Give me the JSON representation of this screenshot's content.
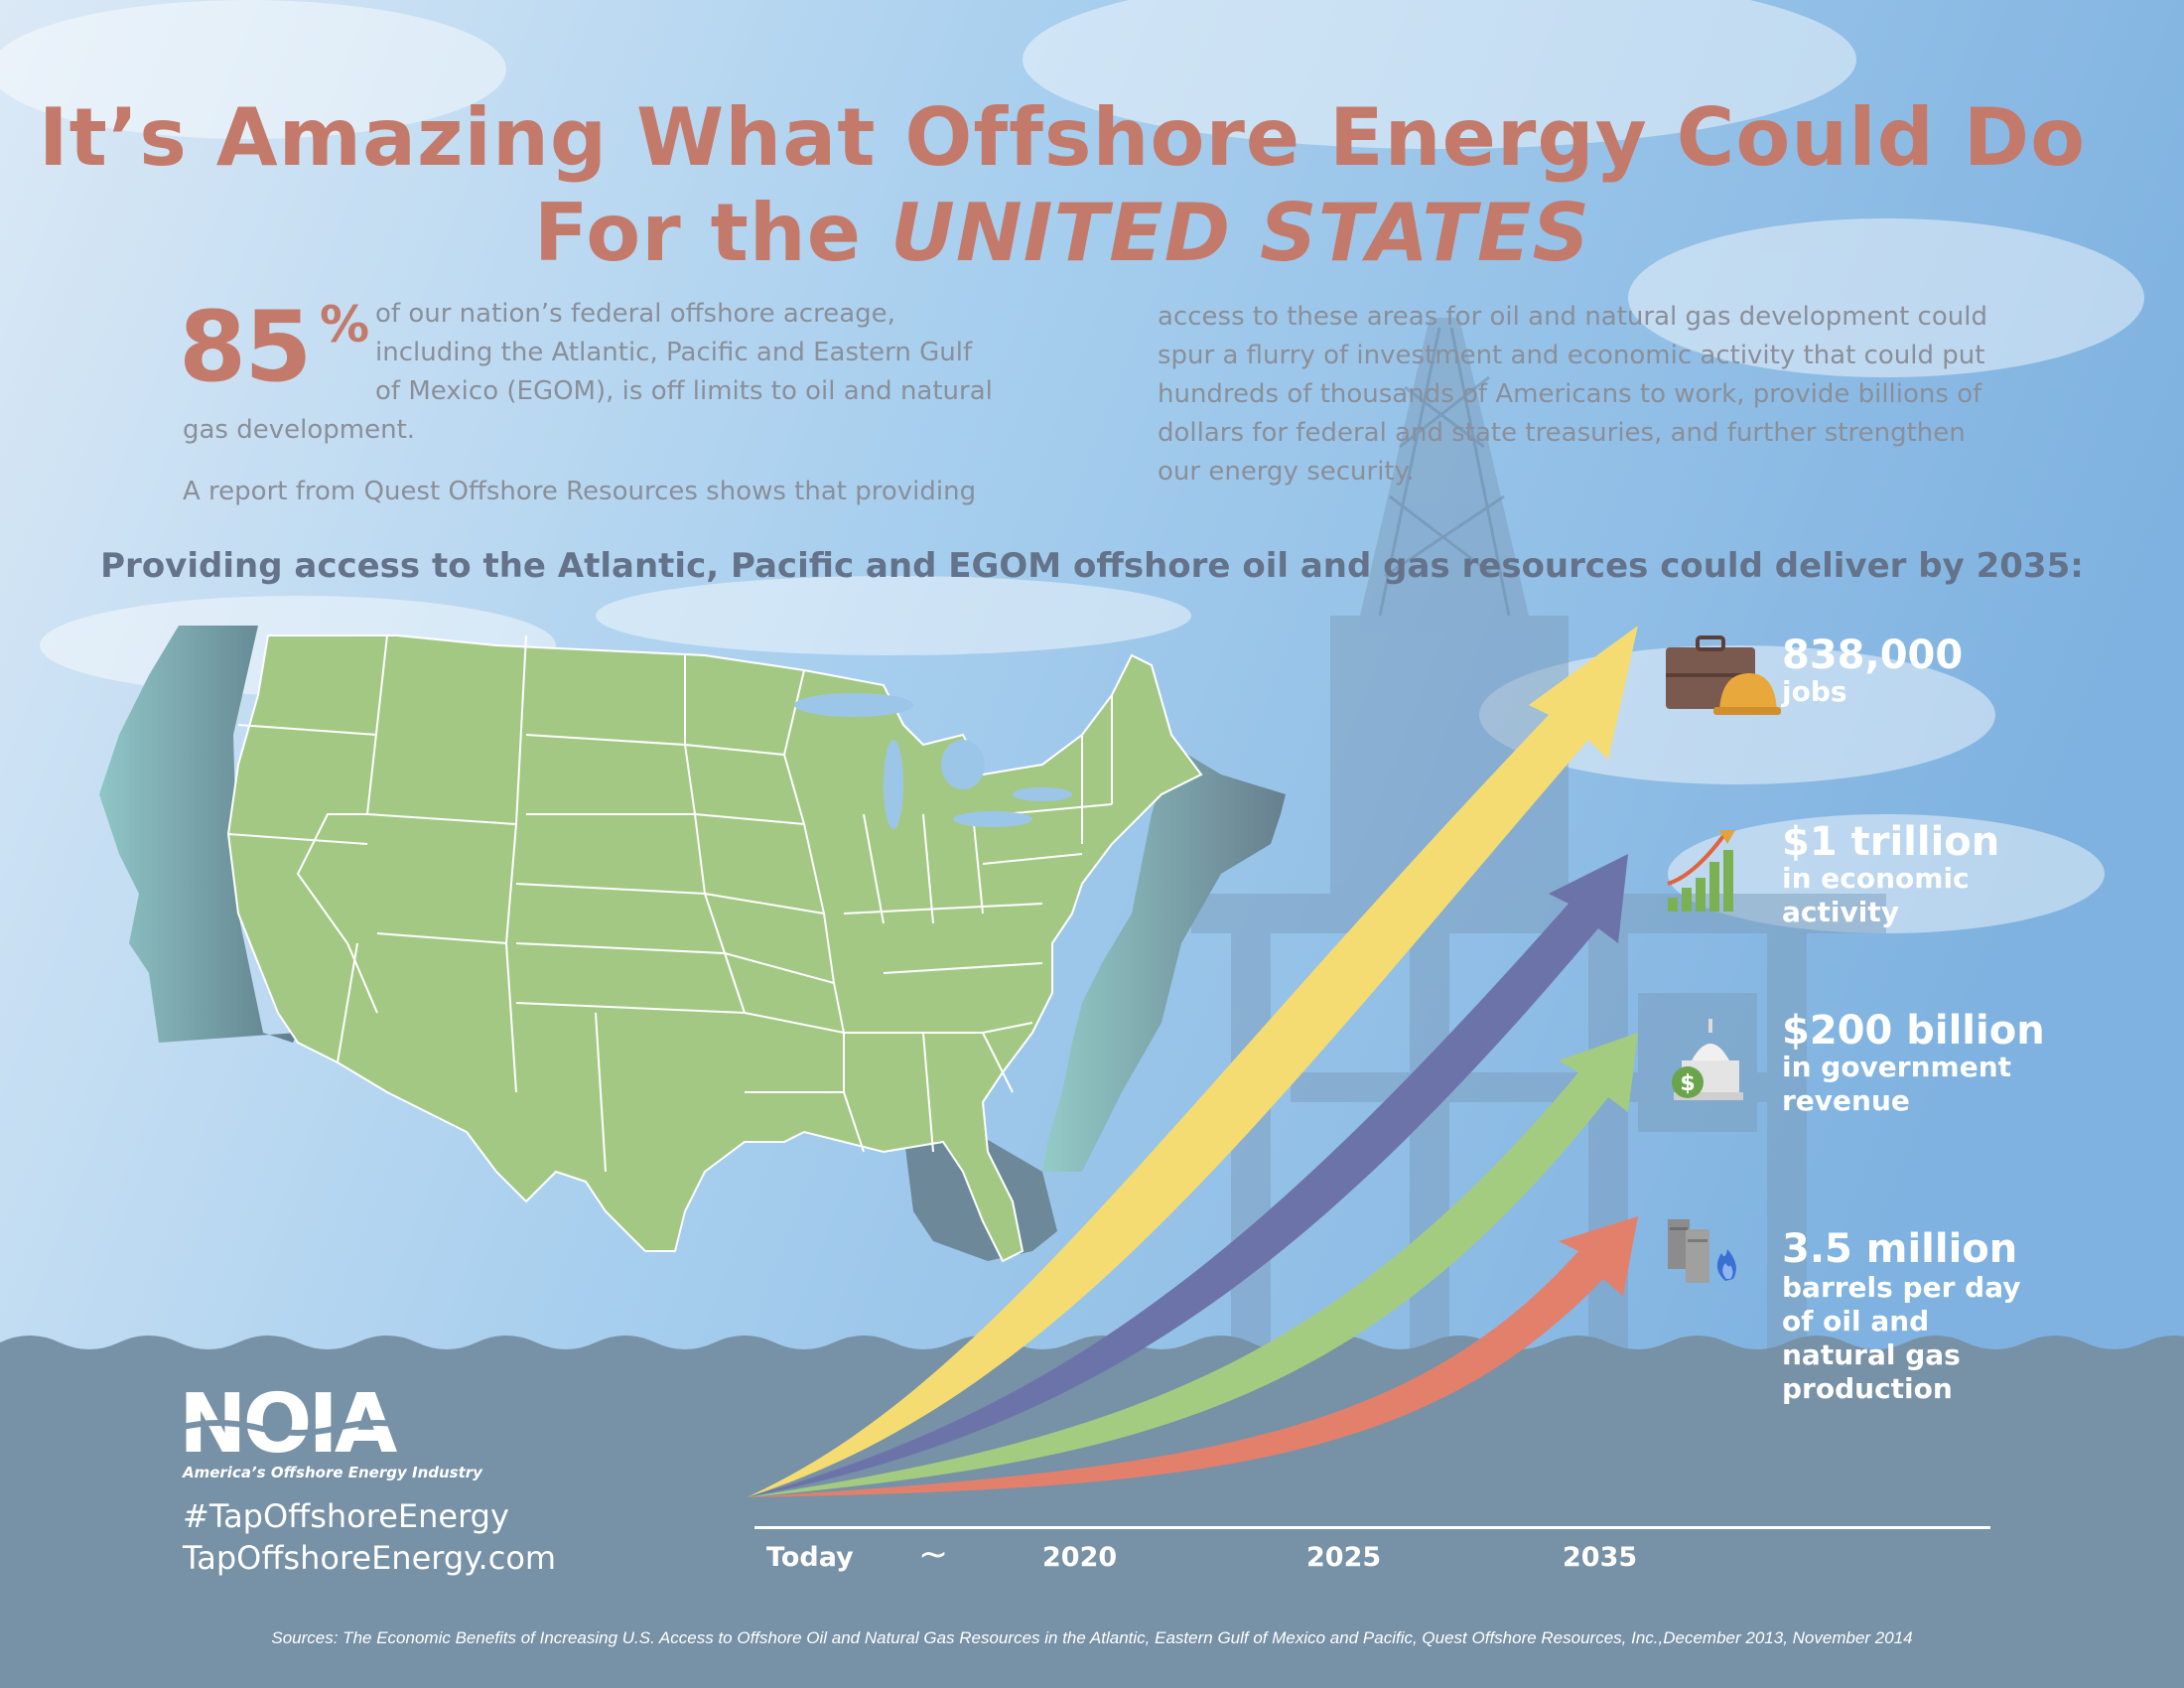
{
  "title": {
    "line1": "It’s Amazing What Offshore Energy Could Do",
    "line2_prefix": "For the ",
    "line2_emph": "UNITED STATES"
  },
  "intro": {
    "percent": "85",
    "percent_sign": "%",
    "p1_line1": "of our nation’s federal offshore acreage,",
    "p1_line2": "including the Atlantic, Pacific and Eastern Gulf",
    "p1_line3": "of Mexico (EGOM), is off limits to oil and natural",
    "p1_line4": "gas development.",
    "p2_line1": "A report from Quest Offshore Resources shows that providing",
    "right_line1": "access to these areas for oil and natural gas development could",
    "right_line2": "spur a flurry of investment and economic activity that could put",
    "right_line3": "hundreds of thousands of Americans to work, provide billions of",
    "right_line4": "dollars for federal and state treasuries, and further strengthen",
    "right_line5": "our energy security."
  },
  "subheading": "Providing access to the Atlantic, Pacific and EGOM offshore oil and gas resources could deliver by 2035:",
  "stats": [
    {
      "big": "838,000",
      "sub1": "jobs",
      "sub2": "",
      "sub3": "",
      "sub4": "",
      "icon": "briefcase-hardhat-icon",
      "arrow_color": "#f4dc72"
    },
    {
      "big": "$1 trillion",
      "sub1": "in economic",
      "sub2": "activity",
      "sub3": "",
      "sub4": "",
      "icon": "growth-chart-icon",
      "arrow_color": "#6c73a9"
    },
    {
      "big": "$200 billion",
      "sub1": "in government",
      "sub2": "revenue",
      "sub3": "",
      "sub4": "",
      "icon": "capitol-money-icon",
      "arrow_color": "#a4cc80"
    },
    {
      "big": "3.5 million",
      "sub1": "barrels per day",
      "sub2": "of oil and",
      "sub3": "natural gas",
      "sub4": "production",
      "icon": "barrels-flame-icon",
      "arrow_color": "#e3806c"
    }
  ],
  "timeline": {
    "labels": [
      "Today",
      "~",
      "2020",
      "2025",
      "2035"
    ]
  },
  "logo": {
    "text": "NOIA",
    "tagline": "America’s Offshore Energy Industry"
  },
  "hashtag": "#TapOffshoreEnergy",
  "website": "TapOffshoreEnergy.com",
  "sources": "Sources: The Economic Benefits of Increasing U.S. Access to Offshore Oil and Natural Gas Resources in the Atlantic, Eastern Gulf of Mexico and Pacific, Quest Offshore Resources, Inc.,December 2013, November 2014",
  "colors": {
    "title": "#c47a6b",
    "map_land": "#a3c884",
    "offshore_zone": "#6f9297",
    "water": "#7791a6"
  }
}
